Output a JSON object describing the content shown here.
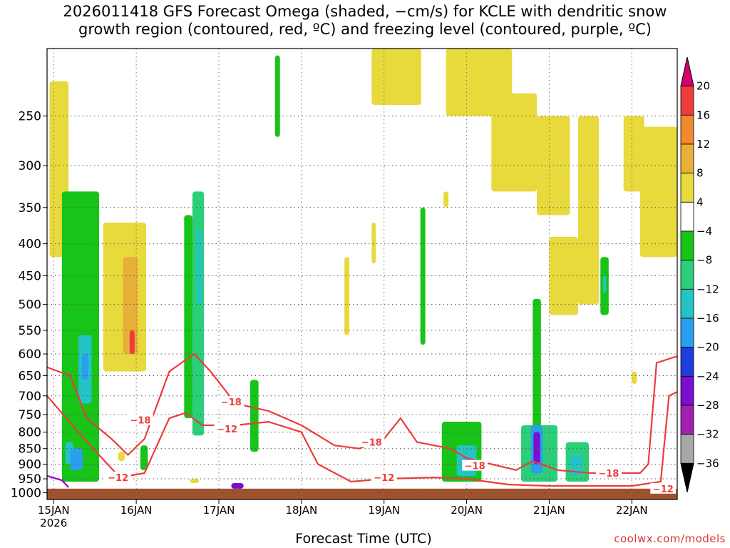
{
  "title_line1": "2026011418 GFS Forecast Omega (shaded, −cm/s) for KCLE with dendritic snow",
  "title_line2": "growth region (contoured, red, ºC) and freezing level (contoured, purple, ºC)",
  "credit": "coolwx.com/models",
  "chart_data": {
    "type": "heatmap",
    "xlabel": "Forecast Time (UTC)",
    "ylabel": "",
    "y_scale": "log-pressure",
    "ylim": [
      1025,
      195
    ],
    "y_ticks": [
      250,
      300,
      350,
      400,
      450,
      500,
      550,
      600,
      650,
      700,
      750,
      800,
      850,
      900,
      950,
      1000
    ],
    "xlim": [
      -0.08,
      7.55
    ],
    "x_ticks": [
      {
        "day": 0,
        "label": "15JAN",
        "sub": "2026"
      },
      {
        "day": 1,
        "label": "16JAN",
        "sub": ""
      },
      {
        "day": 2,
        "label": "17JAN",
        "sub": ""
      },
      {
        "day": 3,
        "label": "18JAN",
        "sub": ""
      },
      {
        "day": 4,
        "label": "19JAN",
        "sub": ""
      },
      {
        "day": 5,
        "label": "20JAN",
        "sub": ""
      },
      {
        "day": 6,
        "label": "21JAN",
        "sub": ""
      },
      {
        "day": 7,
        "label": "22JAN",
        "sub": ""
      }
    ],
    "grid": true,
    "colorbar": {
      "levels": [
        "20",
        "16",
        "12",
        "8",
        "4",
        "−4",
        "−8",
        "−12",
        "−16",
        "−20",
        "−24",
        "−28",
        "−32",
        "−36"
      ],
      "colors": [
        "#d6006f",
        "#ee3b3b",
        "#f08a2c",
        "#e8b036",
        "#e8d93c",
        "#ffffff",
        "#17c417",
        "#2bcf7a",
        "#24c4c4",
        "#2a9ef0",
        "#1e3fdb",
        "#7a0fcf",
        "#a020b0",
        "#a8a8a8",
        "#000000"
      ]
    },
    "omega_regions": [
      {
        "x0": -0.05,
        "x1": 0.18,
        "p0": 220,
        "p1": 420,
        "value": 4
      },
      {
        "x0": 0.1,
        "x1": 0.55,
        "p0": 330,
        "p1": 960,
        "value": -6
      },
      {
        "x0": 0.3,
        "x1": 0.46,
        "p0": 560,
        "p1": 720,
        "value": -12
      },
      {
        "x0": 0.34,
        "x1": 0.42,
        "p0": 600,
        "p1": 660,
        "value": -18
      },
      {
        "x0": 0.14,
        "x1": 0.24,
        "p0": 830,
        "p1": 900,
        "value": -12
      },
      {
        "x0": 0.2,
        "x1": 0.35,
        "p0": 850,
        "p1": 920,
        "value": -16
      },
      {
        "x0": 0.6,
        "x1": 1.12,
        "p0": 370,
        "p1": 640,
        "value": 5
      },
      {
        "x0": 0.84,
        "x1": 1.02,
        "p0": 420,
        "p1": 600,
        "value": 8
      },
      {
        "x0": 0.92,
        "x1": 0.98,
        "p0": 550,
        "p1": 600,
        "value": 16
      },
      {
        "x0": 1.05,
        "x1": 1.14,
        "p0": 840,
        "p1": 920,
        "value": -6
      },
      {
        "x0": 1.58,
        "x1": 1.68,
        "p0": 360,
        "p1": 760,
        "value": -6
      },
      {
        "x0": 1.68,
        "x1": 1.82,
        "p0": 330,
        "p1": 810,
        "value": -8
      },
      {
        "x0": 1.74,
        "x1": 1.8,
        "p0": 380,
        "p1": 500,
        "value": -12
      },
      {
        "x0": 2.38,
        "x1": 2.48,
        "p0": 660,
        "p1": 860,
        "value": -6
      },
      {
        "x0": 0.78,
        "x1": 0.86,
        "p0": 860,
        "p1": 890,
        "value": 4
      },
      {
        "x0": 2.68,
        "x1": 2.74,
        "p0": 200,
        "p1": 270,
        "value": -6
      },
      {
        "x0": 3.52,
        "x1": 3.58,
        "p0": 420,
        "p1": 560,
        "value": 4
      },
      {
        "x0": 3.85,
        "x1": 3.9,
        "p0": 370,
        "p1": 430,
        "value": 4
      },
      {
        "x0": 4.44,
        "x1": 4.5,
        "p0": 350,
        "p1": 580,
        "value": -6
      },
      {
        "x0": 4.72,
        "x1": 4.78,
        "p0": 330,
        "p1": 350,
        "value": 4
      },
      {
        "x0": 3.85,
        "x1": 4.45,
        "p0": 195,
        "p1": 240,
        "value": 4
      },
      {
        "x0": 4.75,
        "x1": 5.55,
        "p0": 195,
        "p1": 250,
        "value": 5
      },
      {
        "x0": 5.3,
        "x1": 5.85,
        "p0": 230,
        "p1": 330,
        "value": 4
      },
      {
        "x0": 5.85,
        "x1": 6.25,
        "p0": 250,
        "p1": 360,
        "value": 5
      },
      {
        "x0": 6.0,
        "x1": 6.35,
        "p0": 390,
        "p1": 520,
        "value": 4
      },
      {
        "x0": 6.35,
        "x1": 6.6,
        "p0": 250,
        "p1": 500,
        "value": 4
      },
      {
        "x0": 6.9,
        "x1": 7.15,
        "p0": 250,
        "p1": 330,
        "value": 4
      },
      {
        "x0": 7.1,
        "x1": 7.55,
        "p0": 260,
        "p1": 420,
        "value": 4
      },
      {
        "x0": 6.62,
        "x1": 6.72,
        "p0": 420,
        "p1": 520,
        "value": -6
      },
      {
        "x0": 6.65,
        "x1": 6.69,
        "p0": 450,
        "p1": 480,
        "value": -12
      },
      {
        "x0": 4.7,
        "x1": 5.18,
        "p0": 770,
        "p1": 960,
        "value": -6
      },
      {
        "x0": 4.88,
        "x1": 5.12,
        "p0": 840,
        "p1": 940,
        "value": -12
      },
      {
        "x0": 4.95,
        "x1": 5.05,
        "p0": 880,
        "p1": 920,
        "value": -16
      },
      {
        "x0": 5.8,
        "x1": 5.9,
        "p0": 490,
        "p1": 960,
        "value": -6
      },
      {
        "x0": 5.66,
        "x1": 6.1,
        "p0": 780,
        "p1": 960,
        "value": -8
      },
      {
        "x0": 5.78,
        "x1": 5.92,
        "p0": 780,
        "p1": 930,
        "value": -16
      },
      {
        "x0": 5.81,
        "x1": 5.89,
        "p0": 800,
        "p1": 900,
        "value": -26
      },
      {
        "x0": 6.2,
        "x1": 6.48,
        "p0": 830,
        "p1": 960,
        "value": -8
      },
      {
        "x0": 6.25,
        "x1": 6.4,
        "p0": 870,
        "p1": 940,
        "value": -14
      },
      {
        "x0": 7.0,
        "x1": 7.06,
        "p0": 640,
        "p1": 670,
        "value": 4
      },
      {
        "x0": 1.65,
        "x1": 1.76,
        "p0": 950,
        "p1": 965,
        "value": 4
      },
      {
        "x0": 2.15,
        "x1": 2.3,
        "p0": 965,
        "p1": 985,
        "value": -26
      }
    ],
    "dgz_contours": [
      {
        "value": -12,
        "label_at": [
          0.8,
          945
        ],
        "points": [
          [
            -0.08,
            700
          ],
          [
            0.3,
            800
          ],
          [
            0.55,
            870
          ],
          [
            0.8,
            945
          ],
          [
            1.1,
            930
          ],
          [
            1.4,
            760
          ],
          [
            1.6,
            745
          ],
          [
            1.8,
            780
          ],
          [
            2.2,
            780
          ],
          [
            2.6,
            770
          ],
          [
            3.0,
            800
          ],
          [
            3.2,
            900
          ],
          [
            3.6,
            960
          ],
          [
            4.0,
            950
          ],
          [
            4.6,
            945
          ],
          [
            5.0,
            950
          ],
          [
            5.5,
            970
          ],
          [
            6.0,
            975
          ],
          [
            6.6,
            975
          ],
          [
            7.0,
            975
          ],
          [
            7.35,
            960
          ],
          [
            7.45,
            700
          ],
          [
            7.55,
            690
          ]
        ]
      },
      {
        "value": -18,
        "label_at": [
          4.0,
          820
        ],
        "points": [
          [
            -0.08,
            630
          ],
          [
            0.2,
            650
          ],
          [
            0.4,
            760
          ],
          [
            0.7,
            820
          ],
          [
            0.9,
            870
          ],
          [
            1.1,
            820
          ],
          [
            1.4,
            640
          ],
          [
            1.7,
            600
          ],
          [
            1.9,
            640
          ],
          [
            2.2,
            720
          ],
          [
            2.6,
            740
          ],
          [
            3.0,
            780
          ],
          [
            3.4,
            840
          ],
          [
            3.7,
            850
          ],
          [
            4.0,
            820
          ],
          [
            4.2,
            760
          ],
          [
            4.4,
            830
          ],
          [
            4.8,
            850
          ],
          [
            5.0,
            880
          ],
          [
            5.3,
            900
          ],
          [
            5.6,
            920
          ],
          [
            5.8,
            890
          ],
          [
            6.1,
            920
          ],
          [
            6.5,
            930
          ],
          [
            6.8,
            930
          ],
          [
            7.1,
            930
          ],
          [
            7.2,
            900
          ],
          [
            7.3,
            620
          ],
          [
            7.55,
            605
          ]
        ]
      }
    ],
    "inline_labels": [
      {
        "text": "−12",
        "day": 0.78,
        "p": 945
      },
      {
        "text": "−18",
        "day": 1.05,
        "p": 765
      },
      {
        "text": "−12",
        "day": 2.1,
        "p": 790
      },
      {
        "text": "−18",
        "day": 2.15,
        "p": 715
      },
      {
        "text": "−18",
        "day": 3.85,
        "p": 830
      },
      {
        "text": "−12",
        "day": 4.0,
        "p": 945
      },
      {
        "text": "−18",
        "day": 5.1,
        "p": 905
      },
      {
        "text": "−18",
        "day": 6.72,
        "p": 930
      },
      {
        "text": "−12",
        "day": 7.38,
        "p": 985
      }
    ],
    "freezing_contour": {
      "value": 0,
      "points": [
        [
          -0.08,
          940
        ],
        [
          0.1,
          955
        ],
        [
          0.18,
          980
        ]
      ]
    },
    "terrain_level_hpa": 985
  }
}
